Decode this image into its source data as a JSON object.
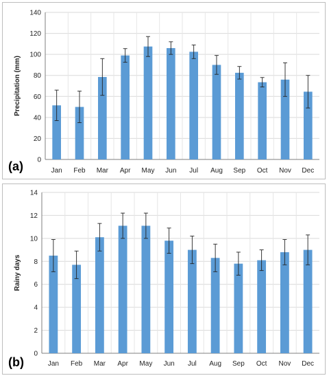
{
  "charts": [
    {
      "panel_label": "(a)",
      "chart_data": {
        "type": "bar",
        "categories": [
          "Jan",
          "Feb",
          "Mar",
          "Apr",
          "May",
          "Jun",
          "Jul",
          "Aug",
          "Sep",
          "Oct",
          "Nov",
          "Dec"
        ],
        "values": [
          51.5,
          50,
          78.5,
          99,
          107.5,
          106,
          102.5,
          90,
          82.5,
          73.5,
          76,
          64.5
        ],
        "error": [
          14.5,
          15,
          17.5,
          6.5,
          9.5,
          6,
          6.5,
          9,
          6,
          4.5,
          16,
          15.5
        ],
        "ylabel": "Precipitation (mm)",
        "ylim": [
          0,
          140
        ],
        "yticks": [
          0,
          20,
          40,
          60,
          80,
          100,
          120,
          140
        ],
        "grid": true,
        "bar_color": "#5b9bd5"
      }
    },
    {
      "panel_label": "(b)",
      "chart_data": {
        "type": "bar",
        "categories": [
          "Jan",
          "Feb",
          "Mar",
          "Apr",
          "May",
          "Jun",
          "Jul",
          "Aug",
          "Sep",
          "Oct",
          "Nov",
          "Dec"
        ],
        "values": [
          8.5,
          7.7,
          10.1,
          11.1,
          11.1,
          9.8,
          9.0,
          8.3,
          7.8,
          8.1,
          8.8,
          9.0
        ],
        "error": [
          1.4,
          1.2,
          1.2,
          1.1,
          1.1,
          1.1,
          1.2,
          1.2,
          1.0,
          0.9,
          1.1,
          1.3
        ],
        "ylabel": "Rainy days",
        "ylim": [
          0,
          14
        ],
        "yticks": [
          0,
          2,
          4,
          6,
          8,
          10,
          12,
          14
        ],
        "grid": true,
        "bar_color": "#5b9bd5"
      }
    }
  ]
}
